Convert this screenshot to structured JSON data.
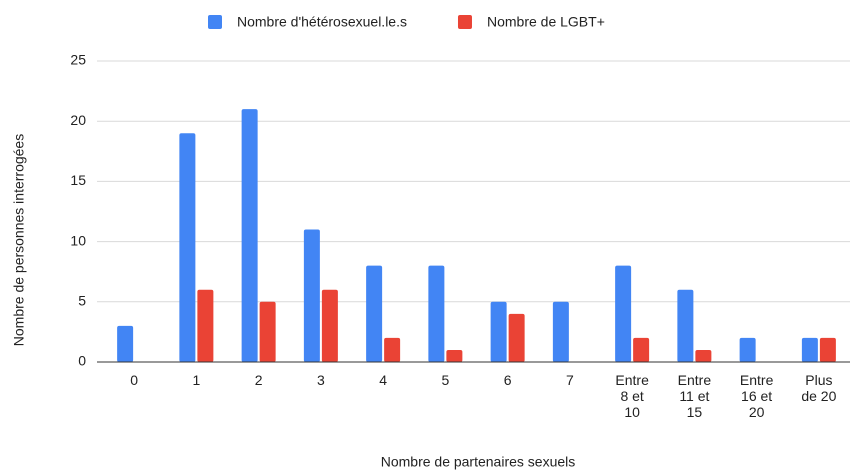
{
  "chart_data": {
    "type": "bar",
    "x_label": "Nombre de partenaires sexuels",
    "y_label": "Nombre de personnes interrogées",
    "categories": [
      "0",
      "1",
      "2",
      "3",
      "4",
      "5",
      "6",
      "7",
      "Entre\n8 et\n10",
      "Entre\n11 et\n15",
      "Entre\n16 et\n20",
      "Plus\nde 20"
    ],
    "series": [
      {
        "name": "Nombre d'hétérosexuel.le.s",
        "color": "#4285f4",
        "values": [
          3,
          19,
          21,
          11,
          8,
          8,
          5,
          5,
          8,
          6,
          2,
          2
        ]
      },
      {
        "name": "Nombre de LGBT+",
        "color": "#ea4335",
        "values": [
          0,
          6,
          5,
          6,
          2,
          1,
          4,
          0,
          2,
          1,
          0,
          2
        ]
      }
    ],
    "ylim": [
      0,
      25
    ],
    "yticks": [
      0,
      5,
      10,
      15,
      20,
      25
    ],
    "grid": true,
    "legend": "top"
  }
}
